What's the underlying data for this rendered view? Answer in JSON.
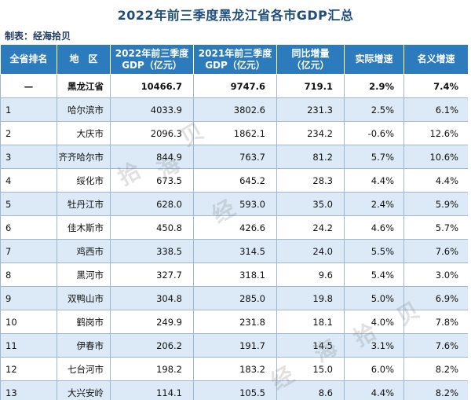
{
  "title": "2022年前三季度黑龙江省各市GDP汇总",
  "maker": "制表：经海拾贝",
  "watermark": [
    "经",
    "海",
    "拾",
    "贝"
  ],
  "headers": [
    [
      "全省排名",
      ""
    ],
    [
      "地　区",
      ""
    ],
    [
      "2022年前三季度",
      "GDP（亿元）"
    ],
    [
      "2021年前三季度",
      "GDP（亿元）"
    ],
    [
      "同比增量",
      "（亿元）"
    ],
    [
      "实际增速",
      ""
    ],
    [
      "名义增速",
      ""
    ]
  ],
  "rows": [
    {
      "rank": "—",
      "region": "黑龙江省",
      "gdp2022": "10466.7",
      "gdp2021": "9747.6",
      "increase": "719.1",
      "real": "2.9%",
      "nominal": "7.4%"
    },
    {
      "rank": "1",
      "region": "哈尔滨市",
      "gdp2022": "4033.9",
      "gdp2021": "3802.6",
      "increase": "231.3",
      "real": "2.5%",
      "nominal": "6.1%"
    },
    {
      "rank": "2",
      "region": "大庆市",
      "gdp2022": "2096.3",
      "gdp2021": "1862.1",
      "increase": "234.2",
      "real": "-0.6%",
      "nominal": "12.6%"
    },
    {
      "rank": "3",
      "region": "齐齐哈尔市",
      "gdp2022": "844.9",
      "gdp2021": "763.7",
      "increase": "81.2",
      "real": "5.7%",
      "nominal": "10.6%"
    },
    {
      "rank": "4",
      "region": "绥化市",
      "gdp2022": "673.5",
      "gdp2021": "645.2",
      "increase": "28.3",
      "real": "4.4%",
      "nominal": "4.4%"
    },
    {
      "rank": "5",
      "region": "牡丹江市",
      "gdp2022": "628.0",
      "gdp2021": "593.0",
      "increase": "35.0",
      "real": "2.4%",
      "nominal": "5.9%"
    },
    {
      "rank": "6",
      "region": "佳木斯市",
      "gdp2022": "450.8",
      "gdp2021": "426.6",
      "increase": "24.2",
      "real": "4.6%",
      "nominal": "5.7%"
    },
    {
      "rank": "7",
      "region": "鸡西市",
      "gdp2022": "338.5",
      "gdp2021": "314.5",
      "increase": "24.0",
      "real": "5.5%",
      "nominal": "7.6%"
    },
    {
      "rank": "8",
      "region": "黑河市",
      "gdp2022": "327.7",
      "gdp2021": "318.1",
      "increase": "9.6",
      "real": "5.4%",
      "nominal": "3.0%"
    },
    {
      "rank": "9",
      "region": "双鸭山市",
      "gdp2022": "304.8",
      "gdp2021": "285.0",
      "increase": "19.8",
      "real": "5.0%",
      "nominal": "6.9%"
    },
    {
      "rank": "10",
      "region": "鹤岗市",
      "gdp2022": "249.9",
      "gdp2021": "231.8",
      "increase": "18.1",
      "real": "4.0%",
      "nominal": "7.8%"
    },
    {
      "rank": "11",
      "region": "伊春市",
      "gdp2022": "206.2",
      "gdp2021": "191.7",
      "increase": "14.5",
      "real": "3.1%",
      "nominal": "7.6%"
    },
    {
      "rank": "12",
      "region": "七台河市",
      "gdp2022": "198.2",
      "gdp2021": "183.2",
      "increase": "15.0",
      "real": "6.0%",
      "nominal": "8.2%"
    },
    {
      "rank": "13",
      "region": "大兴安岭",
      "gdp2022": "114.1",
      "gdp2021": "105.5",
      "increase": "8.6",
      "real": "4.4%",
      "nominal": "8.2%"
    }
  ]
}
